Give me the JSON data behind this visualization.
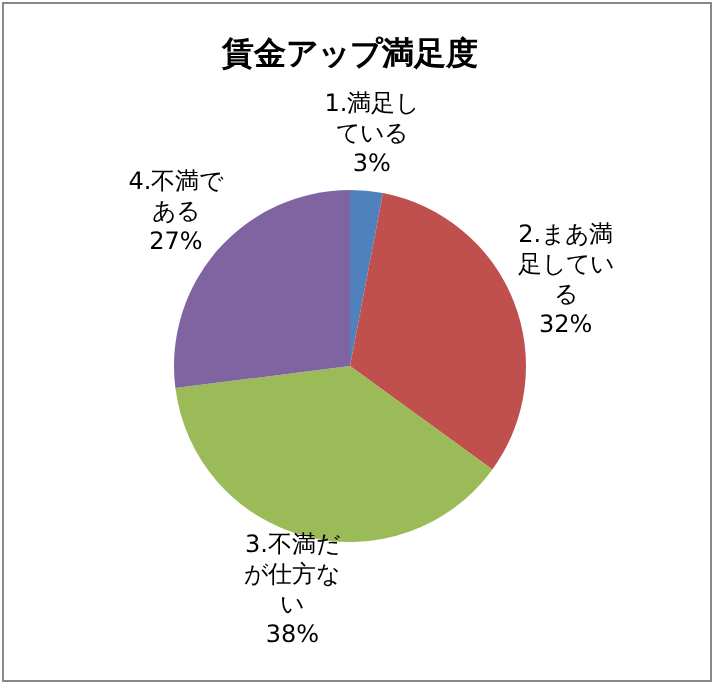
{
  "chart_data": {
    "type": "pie",
    "title": "賃金アップ満足度",
    "categories": [
      "1.満足している",
      "2.まあ満足している",
      "3.不満だが仕方ない",
      "4.不満である"
    ],
    "values": [
      3,
      32,
      38,
      27
    ],
    "value_labels": [
      "3%",
      "32%",
      "38%",
      "27%"
    ],
    "colors": [
      "#4f81bd",
      "#c0504d",
      "#9bbb59",
      "#8064a2"
    ]
  }
}
